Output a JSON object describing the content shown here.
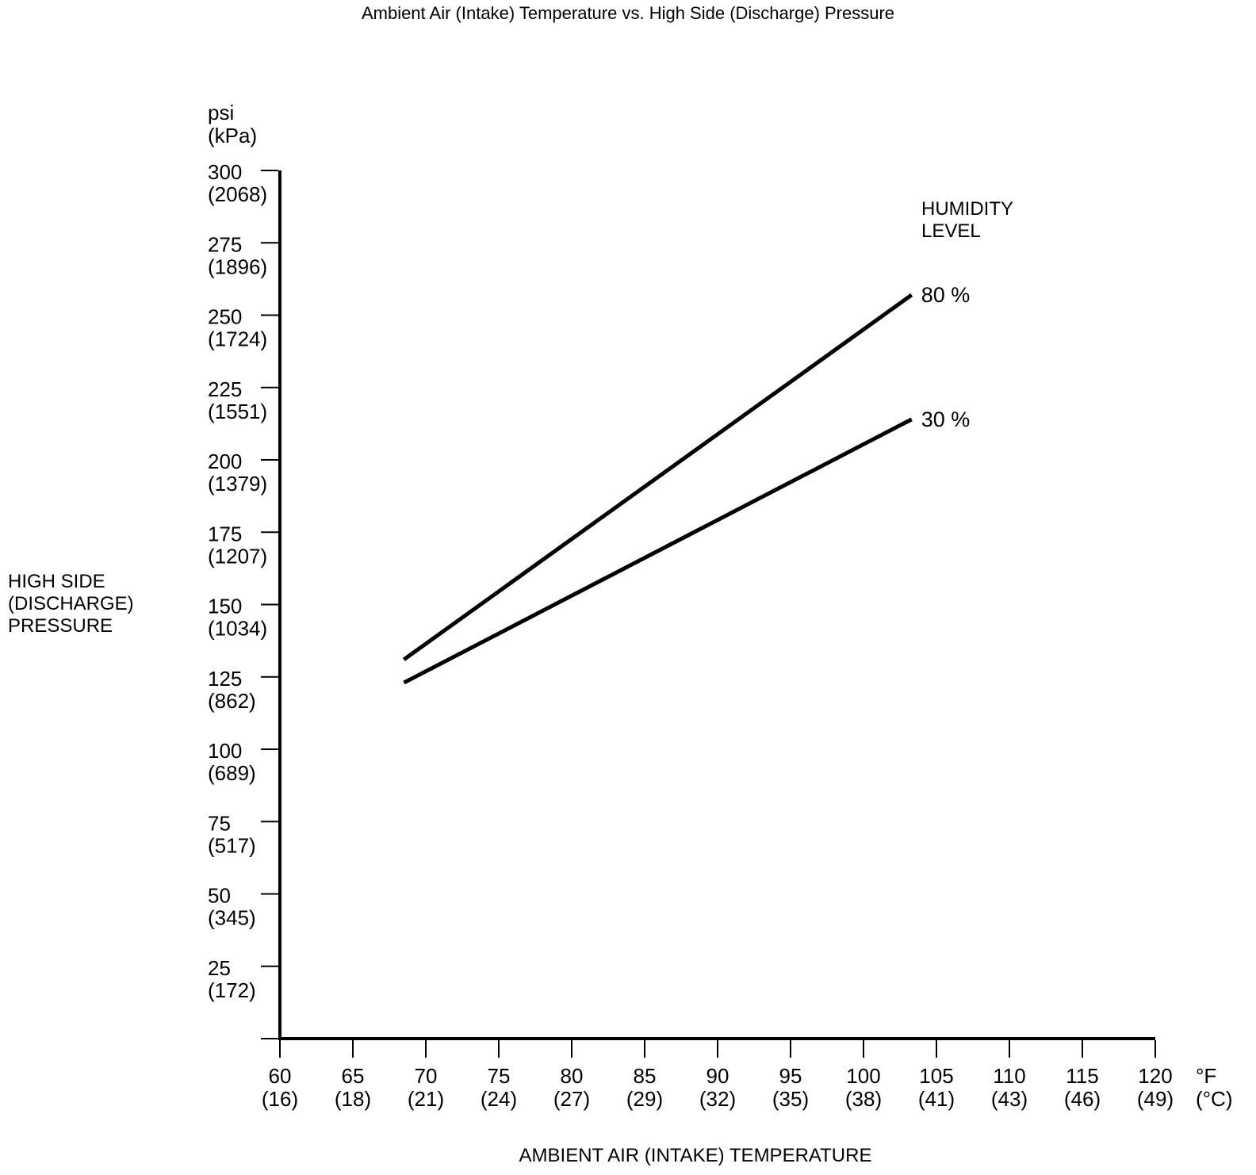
{
  "page": {
    "background": "#ffffff",
    "ink": "#000000"
  },
  "chart_data": {
    "type": "line",
    "title": "Ambient Air (Intake) Temperature vs. High Side (Discharge) Pressure",
    "grid": false,
    "x_axis": {
      "title": "AMBIENT AIR (INTAKE) TEMPERATURE",
      "unit_primary": "°F",
      "unit_secondary": "(°C)",
      "range_f": [
        60,
        120
      ],
      "ticks_f": [
        60,
        65,
        70,
        75,
        80,
        85,
        90,
        95,
        100,
        105,
        110,
        115,
        120
      ],
      "ticks_c": [
        16,
        18,
        21,
        24,
        27,
        29,
        32,
        35,
        38,
        41,
        43,
        46,
        49
      ]
    },
    "y_axis": {
      "label_lines": [
        "HIGH SIDE",
        "(DISCHARGE)",
        "PRESSURE"
      ],
      "unit_lines": [
        "psi",
        "(kPa)"
      ],
      "range_psi": [
        0,
        300
      ],
      "ticks_psi": [
        300,
        275,
        250,
        225,
        200,
        175,
        150,
        125,
        100,
        75,
        50,
        25
      ],
      "ticks_kpa": [
        2068,
        1896,
        1724,
        1551,
        1379,
        1207,
        1034,
        862,
        689,
        517,
        345,
        172
      ]
    },
    "legend": {
      "title_lines": [
        "HUMIDITY",
        "LEVEL"
      ],
      "entries": [
        "80 %",
        "30 %"
      ],
      "position": "top-right"
    },
    "series": [
      {
        "name": "80 %",
        "humidity_percent": 80,
        "points": [
          {
            "temp_f": 68.5,
            "pressure_psi": 131
          },
          {
            "temp_f": 103.3,
            "pressure_psi": 257
          }
        ]
      },
      {
        "name": "30 %",
        "humidity_percent": 30,
        "points": [
          {
            "temp_f": 68.5,
            "pressure_psi": 123
          },
          {
            "temp_f": 103.3,
            "pressure_psi": 214
          }
        ]
      }
    ]
  }
}
